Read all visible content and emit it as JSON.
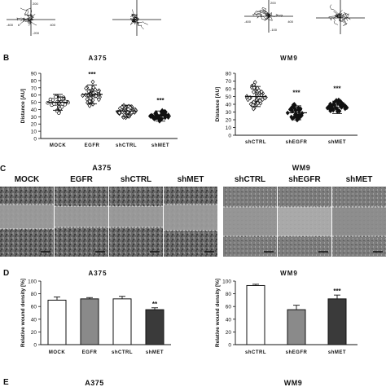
{
  "panel_a": {
    "tracks": [
      {
        "upper_value": "200",
        "left_value": "-400",
        "right_value": "400",
        "lower_value": "-200"
      },
      {
        "upper_value": "",
        "left_value": "",
        "right_value": "",
        "lower_value": ""
      },
      {
        "upper_value": "200",
        "left_value": "-400",
        "right_value": "400",
        "lower_value": "-100"
      },
      {
        "upper_value": "",
        "left_value": "",
        "right_value": "",
        "lower_value": ""
      }
    ]
  },
  "panel_b": {
    "letter": "B",
    "left": {
      "title": "A375",
      "ylabel": "Distance [AU]"
    },
    "right": {
      "title": "WM9",
      "ylabel": "Distance [AU]"
    }
  },
  "panel_c": {
    "letter": "C",
    "left_title": "A375",
    "right_title": "WM9",
    "left_labels": [
      "MOCK",
      "EGFR",
      "shCTRL",
      "shMET"
    ],
    "right_labels": [
      "shCTRL",
      "shEGFR",
      "shMET"
    ]
  },
  "panel_d": {
    "letter": "D",
    "left": {
      "title": "A375",
      "ylabel": "Relative wound density [%]"
    },
    "right": {
      "title": "WM9",
      "ylabel": "Relative wound density [%]"
    }
  },
  "panel_e": {
    "letter": "E",
    "left_title": "A375",
    "right_title": "WM9"
  },
  "colors": {
    "black": "#111111",
    "gray": "#8a8a8a",
    "dark": "#3a3a3a",
    "white": "#ffffff",
    "scratch": "#b5b5b5"
  },
  "chart_data": [
    {
      "type": "scatter",
      "title": "A375",
      "xlabel": "",
      "ylabel": "Distance [AU]",
      "ylim": [
        0,
        90
      ],
      "yticks": [
        0,
        10,
        20,
        30,
        40,
        50,
        60,
        70,
        80,
        90
      ],
      "categories": [
        "MOCK",
        "EGFR",
        "shCTRL",
        "shMET"
      ],
      "markers": [
        "circle",
        "diamond",
        "open-diamond",
        "filled-diamond"
      ],
      "mean": [
        50,
        61,
        38,
        31
      ],
      "sd": [
        11,
        13,
        8,
        7
      ],
      "ymin": [
        30,
        37,
        25,
        17
      ],
      "ymax": [
        68,
        82,
        52,
        46
      ],
      "significance": [
        "",
        "***",
        "",
        "***"
      ]
    },
    {
      "type": "scatter",
      "title": "WM9",
      "xlabel": "",
      "ylabel": "Distance [AU]",
      "ylim": [
        0,
        80
      ],
      "yticks": [
        0,
        10,
        20,
        30,
        40,
        50,
        60,
        70,
        80
      ],
      "categories": [
        "shCTRL",
        "shEGFR",
        "shMET"
      ],
      "markers": [
        "open-diamond",
        "filled-diamond",
        "filled-diamond"
      ],
      "mean": [
        50,
        29,
        36
      ],
      "sd": [
        13,
        9,
        8
      ],
      "ymin": [
        25,
        12,
        18
      ],
      "ymax": [
        72,
        49,
        54
      ],
      "significance": [
        "",
        "***",
        "***"
      ]
    },
    {
      "type": "bar",
      "title": "A375",
      "xlabel": "",
      "ylabel": "Relative wound density [%]",
      "ylim": [
        0,
        100
      ],
      "yticks": [
        0,
        20,
        40,
        60,
        80,
        100
      ],
      "categories": [
        "MOCK",
        "EGFR",
        "shCTRL",
        "shMET"
      ],
      "values": [
        70,
        72,
        72,
        55
      ],
      "errors": [
        5,
        2,
        4,
        3
      ],
      "fills": [
        "white",
        "gray",
        "white",
        "dark"
      ],
      "significance": [
        "",
        "",
        "",
        "**"
      ]
    },
    {
      "type": "bar",
      "title": "WM9",
      "xlabel": "",
      "ylabel": "Relative wound density [%]",
      "ylim": [
        0,
        100
      ],
      "yticks": [
        0,
        20,
        40,
        60,
        80,
        100
      ],
      "categories": [
        "shCTRL",
        "shEGFR",
        "shMET"
      ],
      "values": [
        93,
        55,
        72
      ],
      "errors": [
        2,
        7,
        6
      ],
      "fills": [
        "white",
        "gray",
        "dark"
      ],
      "significance": [
        "",
        "",
        "***"
      ]
    }
  ]
}
